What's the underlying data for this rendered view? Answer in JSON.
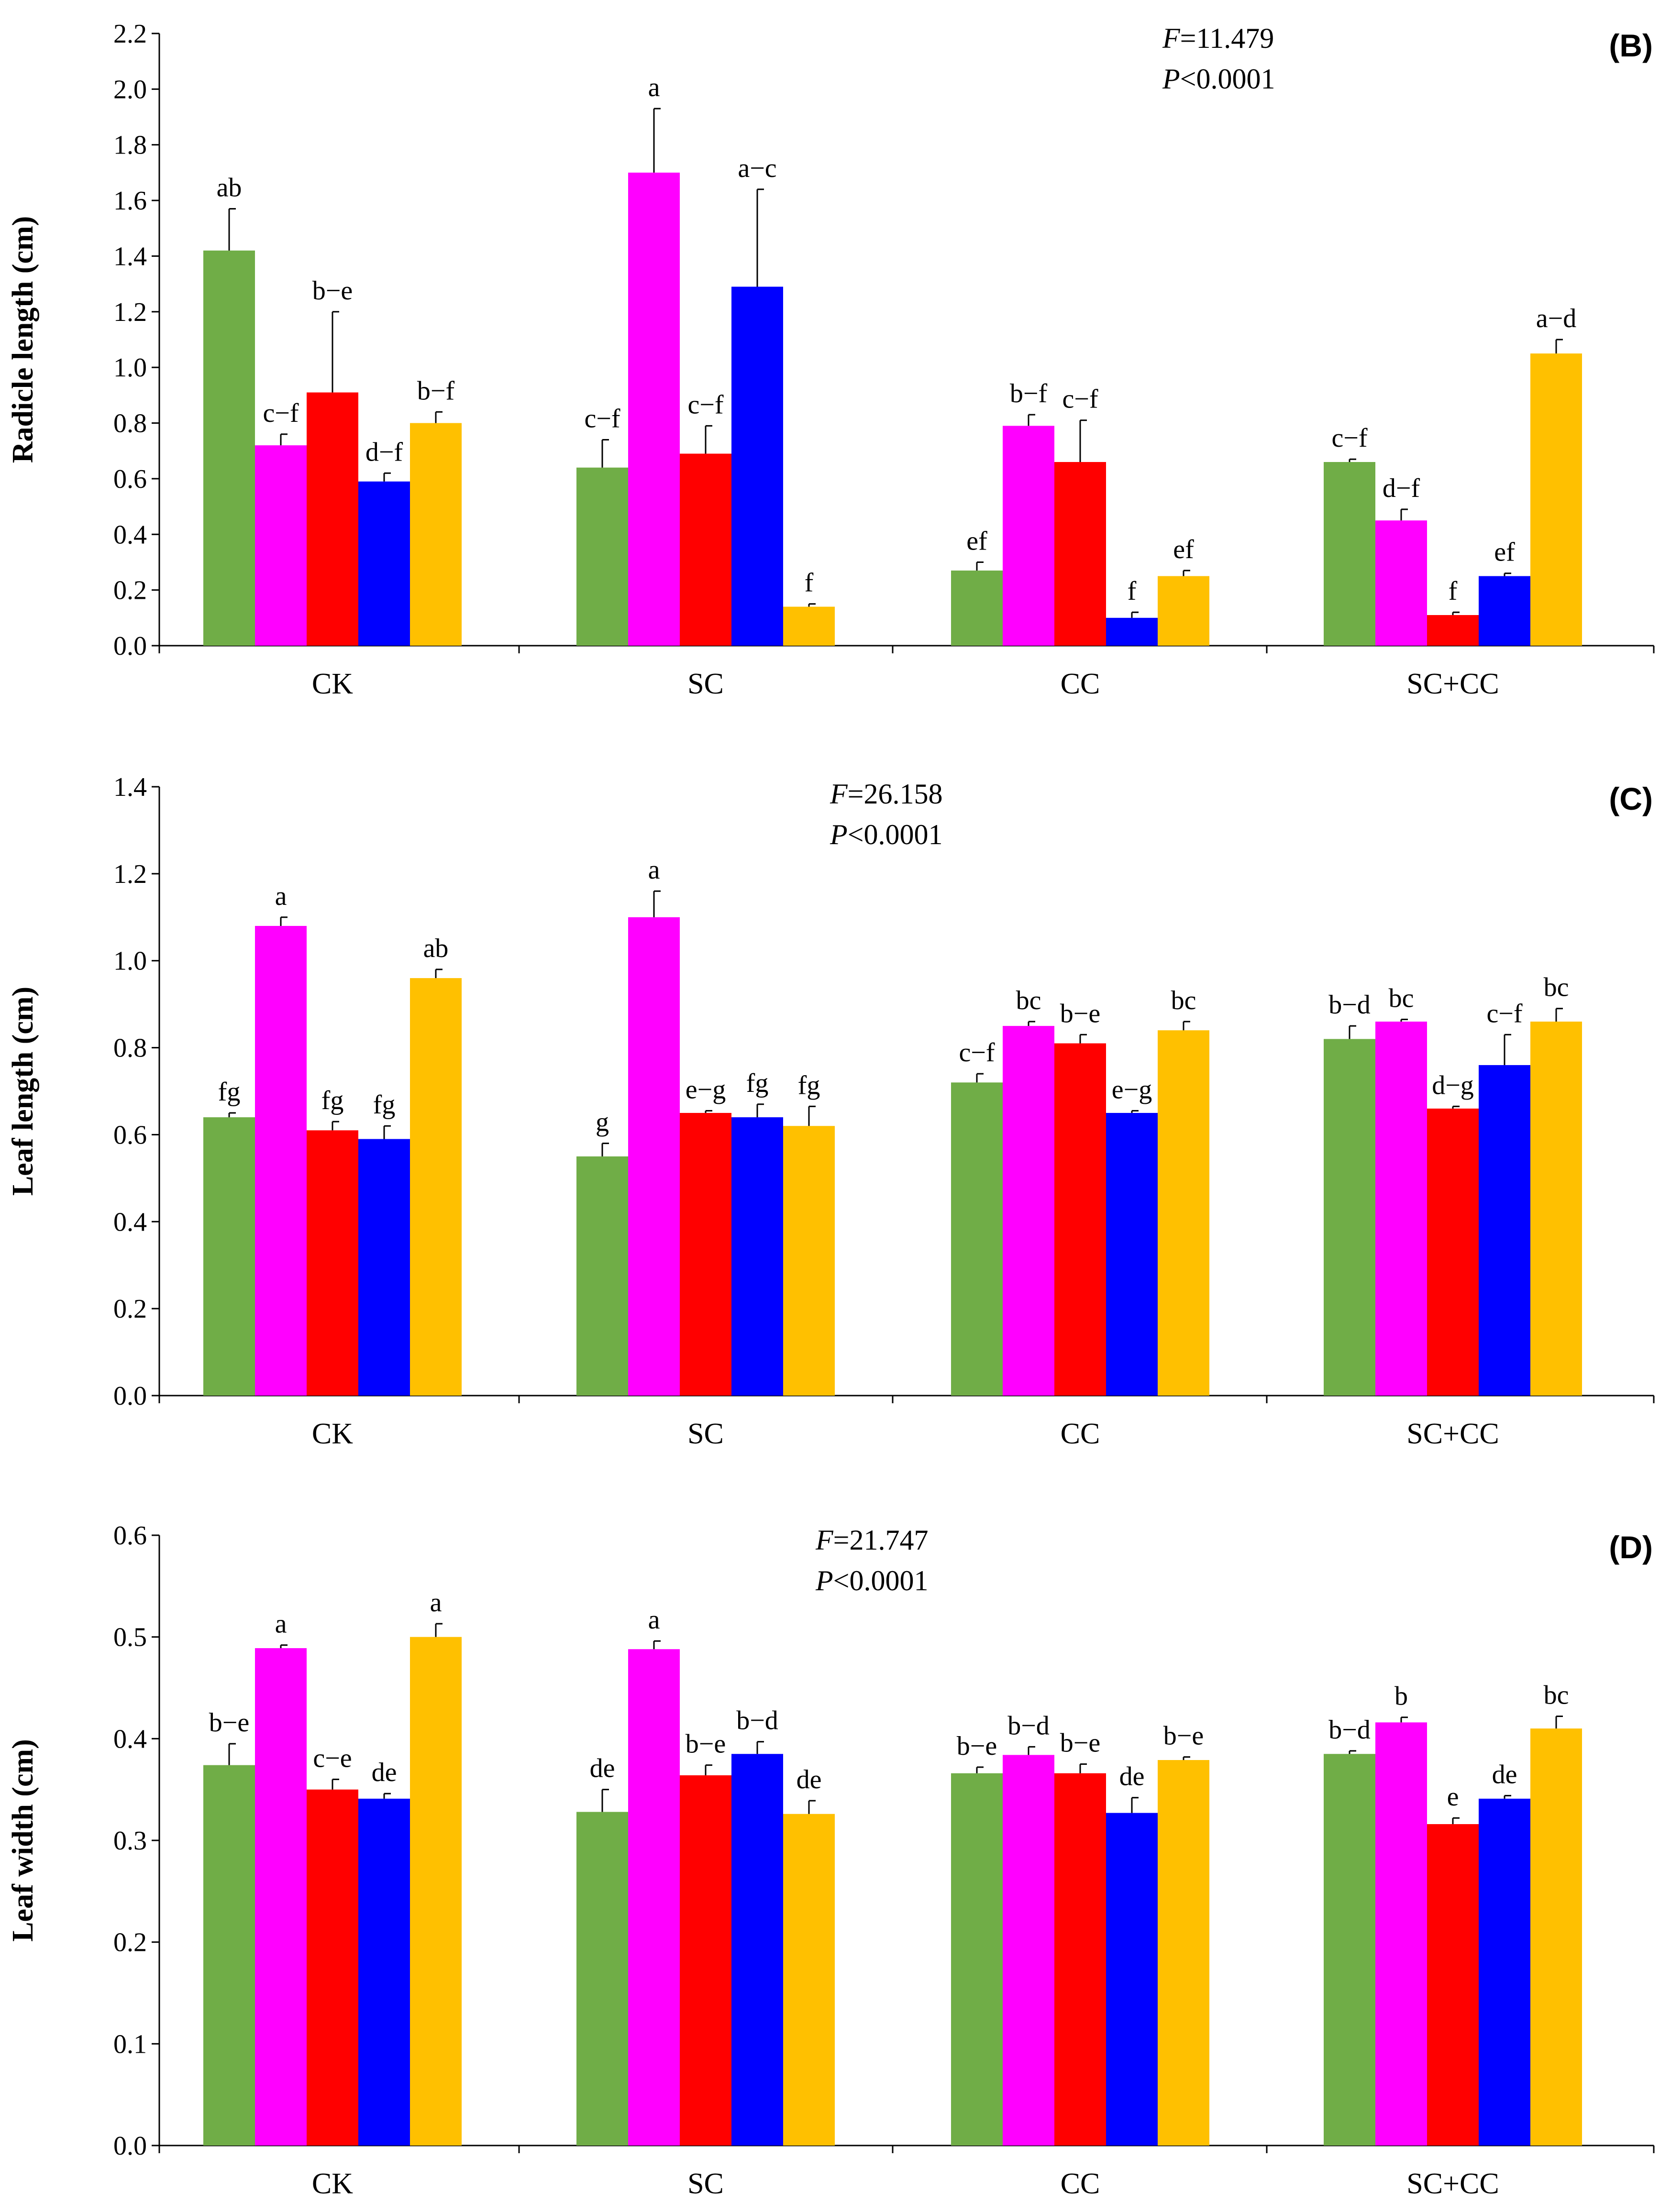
{
  "colors": [
    "#70AD47",
    "#FF00FF",
    "#FF0000",
    "#0000FF",
    "#FFC000"
  ],
  "chart_data": [
    {
      "type": "bar",
      "panel": "(B)",
      "ylabel": "Radicle length (cm)",
      "categories": [
        "CK",
        "SC",
        "CC",
        "SC+CC"
      ],
      "ylim": [
        0,
        2.2
      ],
      "yticks": [
        "0.0",
        "0.2",
        "0.4",
        "0.6",
        "0.8",
        "1.0",
        "1.2",
        "1.4",
        "1.6",
        "1.8",
        "2.0",
        "2.2"
      ],
      "stat": {
        "F_symbol": "F",
        "F_value": "=11.479",
        "P_symbol": "P",
        "P_value": "<0.0001"
      },
      "values": [
        [
          1.42,
          0.72,
          0.91,
          0.59,
          0.8
        ],
        [
          0.64,
          1.7,
          0.69,
          1.29,
          0.14
        ],
        [
          0.27,
          0.79,
          0.66,
          0.1,
          0.25
        ],
        [
          0.66,
          0.45,
          0.11,
          0.25,
          1.05
        ]
      ],
      "errors": [
        [
          0.15,
          0.04,
          0.29,
          0.03,
          0.04
        ],
        [
          0.1,
          0.23,
          0.1,
          0.35,
          0.01
        ],
        [
          0.03,
          0.04,
          0.15,
          0.02,
          0.02
        ],
        [
          0.01,
          0.04,
          0.01,
          0.01,
          0.05
        ]
      ],
      "letters": [
        [
          "ab",
          "c−f",
          "b−e",
          "d−f",
          "b−f"
        ],
        [
          "c−f",
          "a",
          "c−f",
          "a−c",
          "f"
        ],
        [
          "ef",
          "b−f",
          "c−f",
          "f",
          "ef"
        ],
        [
          "c−f",
          "d−f",
          "f",
          "ef",
          "a−d"
        ]
      ]
    },
    {
      "type": "bar",
      "panel": "(C)",
      "ylabel": "Leaf  length (cm)",
      "categories": [
        "CK",
        "SC",
        "CC",
        "SC+CC"
      ],
      "ylim": [
        0,
        1.4
      ],
      "yticks": [
        "0.0",
        "0.2",
        "0.4",
        "0.6",
        "0.8",
        "1.0",
        "1.2",
        "1.4"
      ],
      "stat": {
        "F_symbol": "F",
        "F_value": "=26.158",
        "P_symbol": "P",
        "P_value": "<0.0001"
      },
      "values": [
        [
          0.64,
          1.08,
          0.61,
          0.59,
          0.96
        ],
        [
          0.55,
          1.1,
          0.65,
          0.64,
          0.62
        ],
        [
          0.72,
          0.85,
          0.81,
          0.65,
          0.84
        ],
        [
          0.82,
          0.86,
          0.66,
          0.76,
          0.86
        ]
      ],
      "errors": [
        [
          0.01,
          0.02,
          0.02,
          0.03,
          0.02
        ],
        [
          0.03,
          0.06,
          0.005,
          0.03,
          0.045
        ],
        [
          0.02,
          0.01,
          0.02,
          0.005,
          0.02
        ],
        [
          0.03,
          0.005,
          0.005,
          0.07,
          0.03
        ]
      ],
      "letters": [
        [
          "fg",
          "a",
          "fg",
          "fg",
          "ab"
        ],
        [
          "g",
          "a",
          "e−g",
          "fg",
          "fg"
        ],
        [
          "c−f",
          "bc",
          "b−e",
          "e−g",
          "bc"
        ],
        [
          "b−d",
          "bc",
          "d−g",
          "c−f",
          "bc"
        ]
      ]
    },
    {
      "type": "bar",
      "panel": "(D)",
      "ylabel": "Leaf  width (cm)",
      "categories": [
        "CK",
        "SC",
        "CC",
        "SC+CC"
      ],
      "ylim": [
        0,
        0.6
      ],
      "yticks": [
        "0.0",
        "0.1",
        "0.2",
        "0.3",
        "0.4",
        "0.5",
        "0.6"
      ],
      "stat": {
        "F_symbol": "F",
        "F_value": "=21.747",
        "P_symbol": "P",
        "P_value": "<0.0001"
      },
      "values": [
        [
          0.374,
          0.489,
          0.35,
          0.341,
          0.5
        ],
        [
          0.328,
          0.488,
          0.364,
          0.385,
          0.326
        ],
        [
          0.366,
          0.384,
          0.366,
          0.327,
          0.379
        ],
        [
          0.385,
          0.416,
          0.316,
          0.341,
          0.41
        ]
      ],
      "errors": [
        [
          0.021,
          0.003,
          0.01,
          0.005,
          0.013
        ],
        [
          0.022,
          0.008,
          0.01,
          0.012,
          0.013
        ],
        [
          0.006,
          0.008,
          0.009,
          0.015,
          0.003
        ],
        [
          0.003,
          0.005,
          0.006,
          0.003,
          0.012
        ]
      ],
      "letters": [
        [
          "b−e",
          "a",
          "c−e",
          "de",
          "a"
        ],
        [
          "de",
          "a",
          "b−e",
          "b−d",
          "de"
        ],
        [
          "b−e",
          "b−d",
          "b−e",
          "de",
          "b−e"
        ],
        [
          "b−d",
          "b",
          "e",
          "de",
          "bc"
        ]
      ]
    }
  ]
}
